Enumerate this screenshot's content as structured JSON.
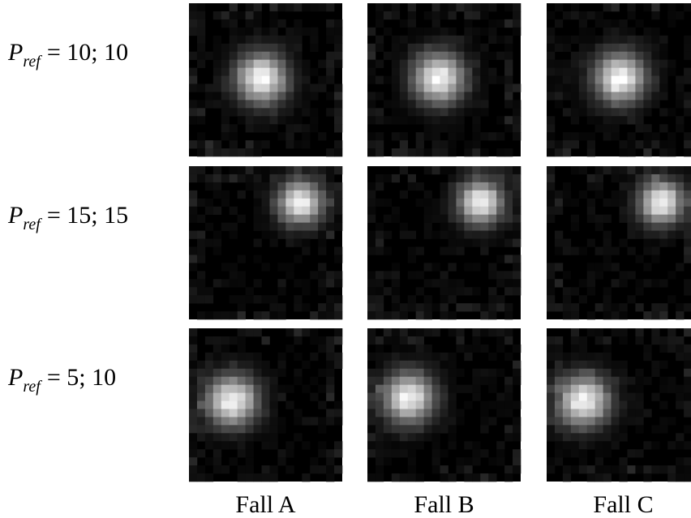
{
  "rows": [
    {
      "symbol": "P",
      "subscript": "ref",
      "value": "= 10; 10"
    },
    {
      "symbol": "P",
      "subscript": "ref",
      "value": "= 15; 15"
    },
    {
      "symbol": "P",
      "subscript": "ref",
      "value": "= 5; 10"
    }
  ],
  "columns": [
    "Fall A",
    "Fall B",
    "Fall C"
  ]
}
